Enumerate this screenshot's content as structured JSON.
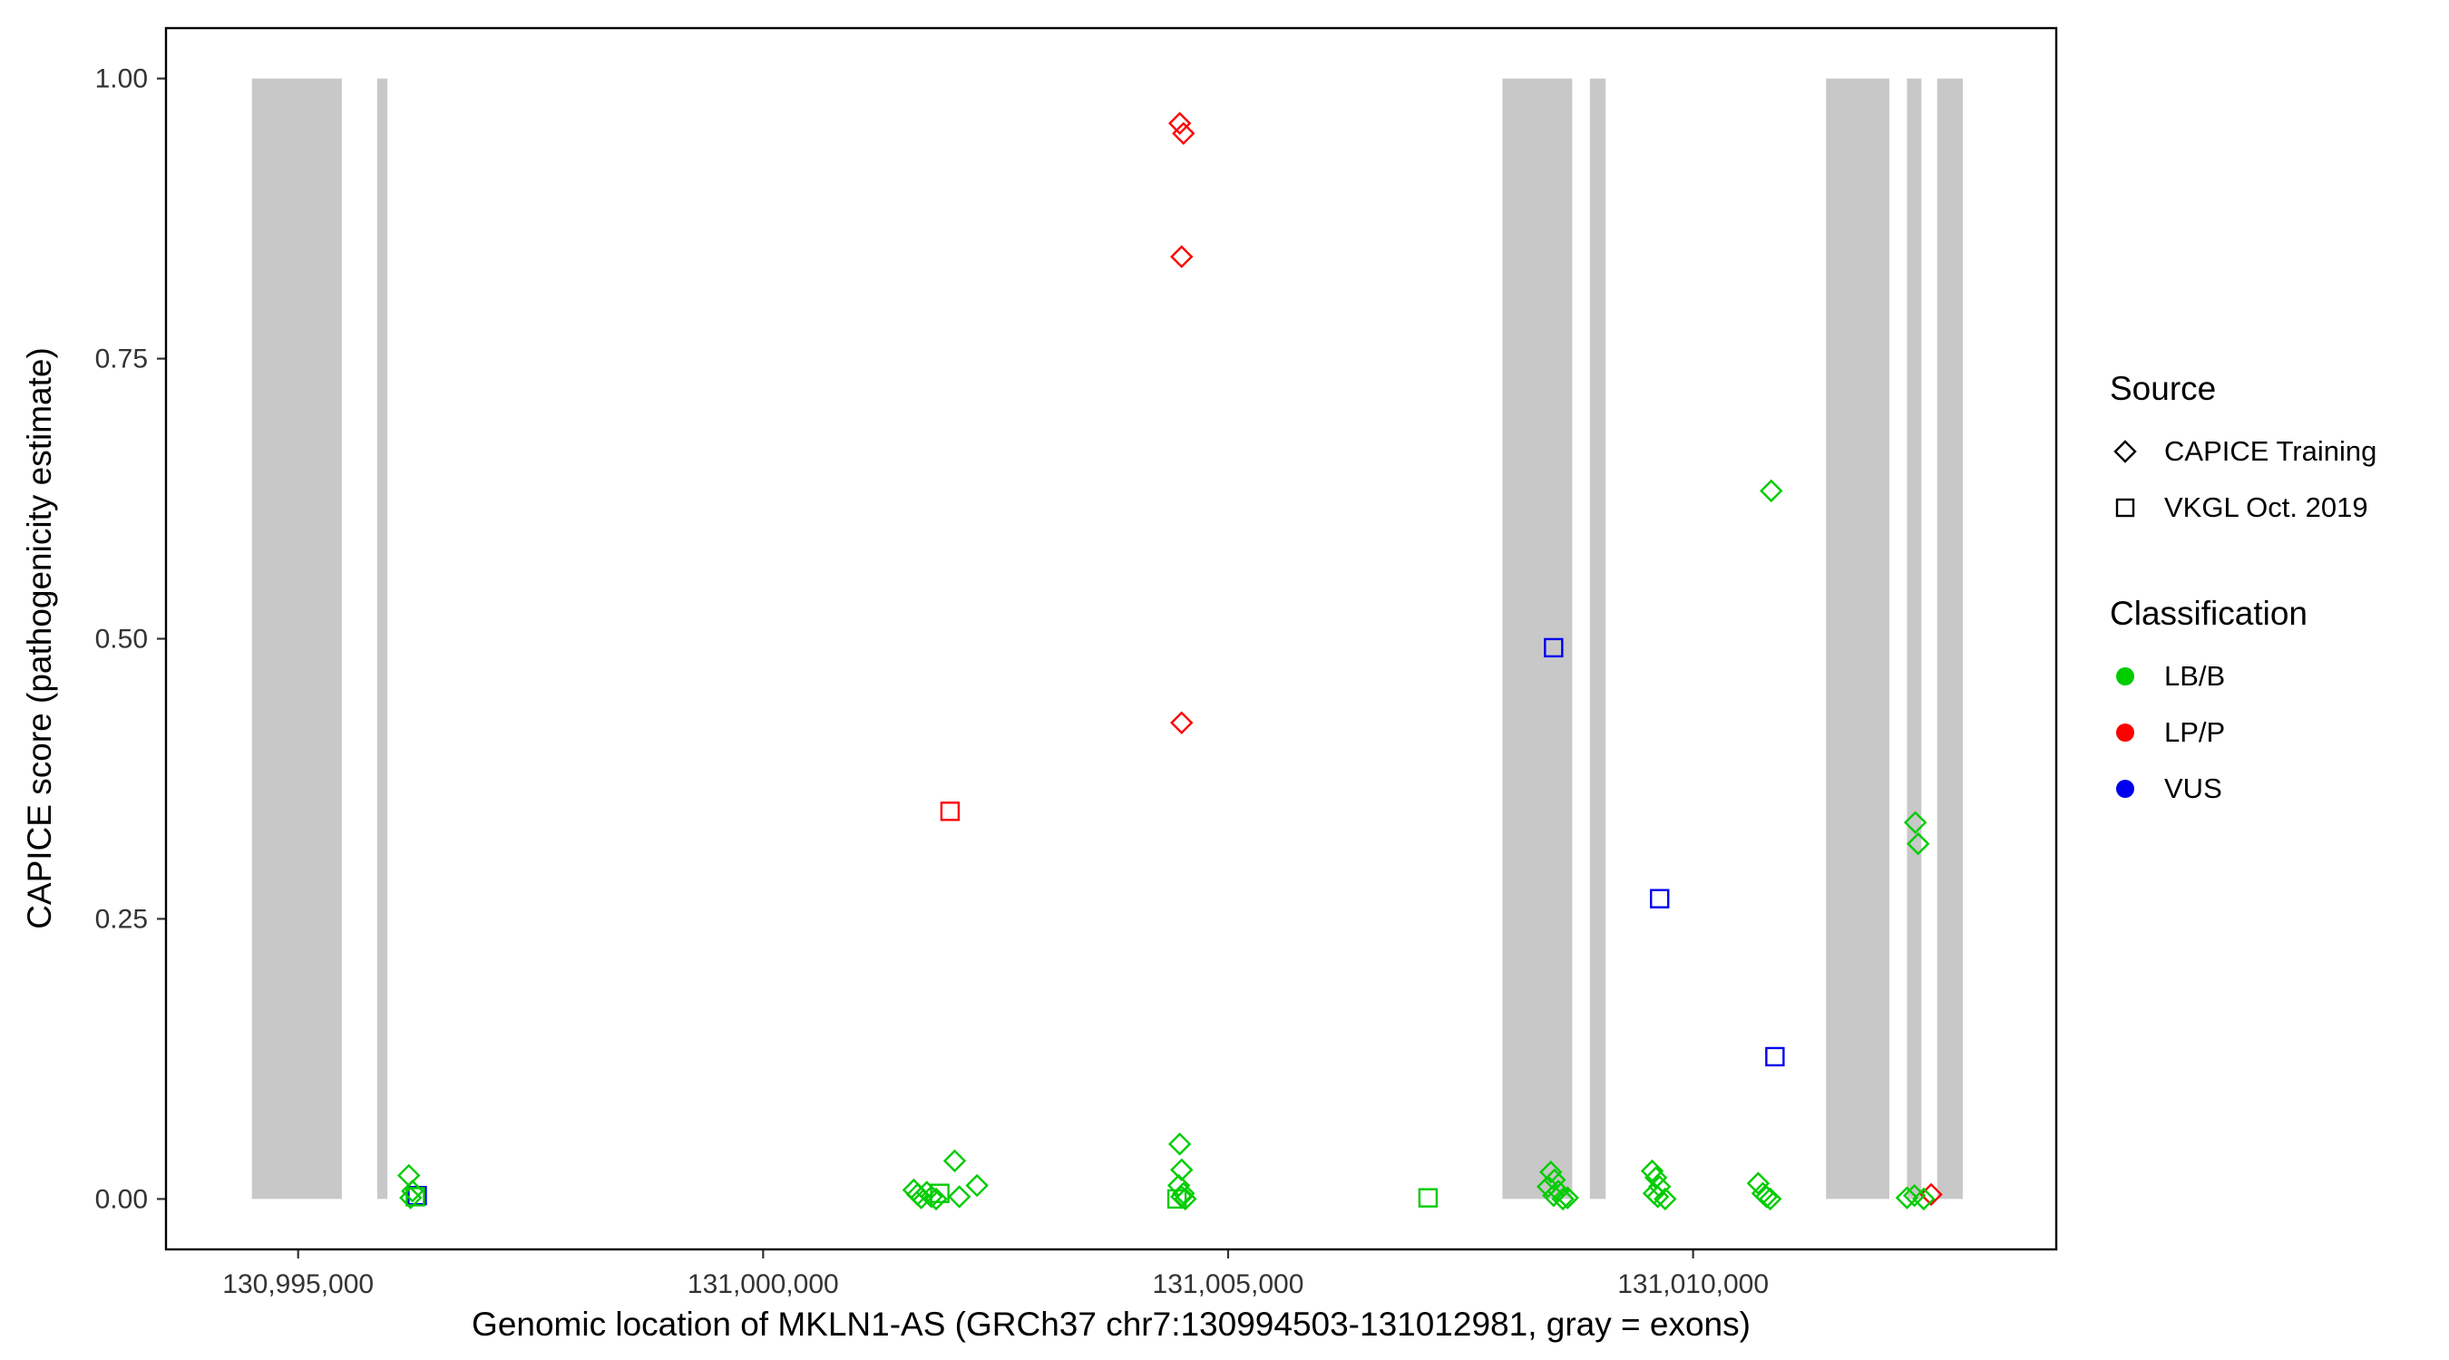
{
  "chart_data": {
    "type": "scatter",
    "title": "",
    "xlabel": "Genomic location of MKLN1-AS (GRCh37 chr7:130994503-131012981, gray = exons)",
    "ylabel": "CAPICE score (pathogenicity estimate)",
    "xlim": [
      130993579,
      131013905
    ],
    "ylim": [
      -0.045,
      1.045
    ],
    "grid": "off",
    "legend_position": "right",
    "x_ticks": {
      "values": [
        130995000,
        131000000,
        131005000,
        131010000
      ],
      "labels": [
        "130,995,000",
        "131,000,000",
        "131,005,000",
        "131,010,000"
      ]
    },
    "y_ticks": {
      "values": [
        0,
        0.25,
        0.5,
        0.75,
        1
      ],
      "labels": [
        "0.00",
        "0.25",
        "0.50",
        "0.75",
        "1.00"
      ]
    },
    "exon_color": "#C8C8C8",
    "exons": [
      [
        130994503,
        130995470
      ],
      [
        130995850,
        130995960
      ],
      [
        131007950,
        131008700
      ],
      [
        131008890,
        131009060
      ],
      [
        131011430,
        131012110
      ],
      [
        131012300,
        131012455
      ],
      [
        131012625,
        131012900
      ]
    ],
    "classification_colors": {
      "LB/B": "#00CC00",
      "LP/P": "#FF0000",
      "VUS": "#0000EE"
    },
    "source_shapes": {
      "CAPICE Training": "diamond",
      "VKGL Oct. 2019": "square"
    },
    "points": [
      {
        "x": 131004480,
        "y": 0.96,
        "classification": "LP/P",
        "source": "CAPICE Training"
      },
      {
        "x": 131004520,
        "y": 0.951,
        "classification": "LP/P",
        "source": "CAPICE Training"
      },
      {
        "x": 131004500,
        "y": 0.841,
        "classification": "LP/P",
        "source": "CAPICE Training"
      },
      {
        "x": 131004500,
        "y": 0.425,
        "classification": "LP/P",
        "source": "CAPICE Training"
      },
      {
        "x": 131012560,
        "y": 0.004,
        "classification": "LP/P",
        "source": "CAPICE Training"
      },
      {
        "x": 131002010,
        "y": 0.346,
        "classification": "LP/P",
        "source": "VKGL Oct. 2019"
      },
      {
        "x": 131008500,
        "y": 0.492,
        "classification": "VUS",
        "source": "VKGL Oct. 2019"
      },
      {
        "x": 131009640,
        "y": 0.268,
        "classification": "VUS",
        "source": "VKGL Oct. 2019"
      },
      {
        "x": 131010880,
        "y": 0.127,
        "classification": "VUS",
        "source": "VKGL Oct. 2019"
      },
      {
        "x": 130996280,
        "y": 0.003,
        "classification": "VUS",
        "source": "VKGL Oct. 2019"
      },
      {
        "x": 131010840,
        "y": 0.632,
        "classification": "LB/B",
        "source": "CAPICE Training"
      },
      {
        "x": 131012390,
        "y": 0.336,
        "classification": "LB/B",
        "source": "CAPICE Training"
      },
      {
        "x": 131012420,
        "y": 0.317,
        "classification": "LB/B",
        "source": "CAPICE Training"
      },
      {
        "x": 130996190,
        "y": 0.021,
        "classification": "LB/B",
        "source": "CAPICE Training"
      },
      {
        "x": 130996230,
        "y": 0.007,
        "classification": "LB/B",
        "source": "CAPICE Training"
      },
      {
        "x": 130996210,
        "y": 0.001,
        "classification": "LB/B",
        "source": "CAPICE Training"
      },
      {
        "x": 131001620,
        "y": 0.008,
        "classification": "LB/B",
        "source": "CAPICE Training"
      },
      {
        "x": 131001660,
        "y": 0.004,
        "classification": "LB/B",
        "source": "CAPICE Training"
      },
      {
        "x": 131001700,
        "y": 0.001,
        "classification": "LB/B",
        "source": "CAPICE Training"
      },
      {
        "x": 131001760,
        "y": 0.006,
        "classification": "LB/B",
        "source": "CAPICE Training"
      },
      {
        "x": 131001810,
        "y": 0.002,
        "classification": "LB/B",
        "source": "CAPICE Training"
      },
      {
        "x": 131001860,
        "y": 0.0,
        "classification": "LB/B",
        "source": "CAPICE Training"
      },
      {
        "x": 131002060,
        "y": 0.034,
        "classification": "LB/B",
        "source": "CAPICE Training"
      },
      {
        "x": 131002110,
        "y": 0.002,
        "classification": "LB/B",
        "source": "CAPICE Training"
      },
      {
        "x": 131002300,
        "y": 0.012,
        "classification": "LB/B",
        "source": "CAPICE Training"
      },
      {
        "x": 131004480,
        "y": 0.049,
        "classification": "LB/B",
        "source": "CAPICE Training"
      },
      {
        "x": 131004500,
        "y": 0.026,
        "classification": "LB/B",
        "source": "CAPICE Training"
      },
      {
        "x": 131004470,
        "y": 0.012,
        "classification": "LB/B",
        "source": "CAPICE Training"
      },
      {
        "x": 131004520,
        "y": 0.005,
        "classification": "LB/B",
        "source": "CAPICE Training"
      },
      {
        "x": 131004500,
        "y": 0.002,
        "classification": "LB/B",
        "source": "CAPICE Training"
      },
      {
        "x": 131004540,
        "y": 0.0,
        "classification": "LB/B",
        "source": "CAPICE Training"
      },
      {
        "x": 131008470,
        "y": 0.024,
        "classification": "LB/B",
        "source": "CAPICE Training"
      },
      {
        "x": 131008510,
        "y": 0.017,
        "classification": "LB/B",
        "source": "CAPICE Training"
      },
      {
        "x": 131008440,
        "y": 0.011,
        "classification": "LB/B",
        "source": "CAPICE Training"
      },
      {
        "x": 131008550,
        "y": 0.007,
        "classification": "LB/B",
        "source": "CAPICE Training"
      },
      {
        "x": 131008500,
        "y": 0.003,
        "classification": "LB/B",
        "source": "CAPICE Training"
      },
      {
        "x": 131008600,
        "y": 0.0,
        "classification": "LB/B",
        "source": "CAPICE Training"
      },
      {
        "x": 131008650,
        "y": 0.001,
        "classification": "LB/B",
        "source": "CAPICE Training"
      },
      {
        "x": 131009560,
        "y": 0.025,
        "classification": "LB/B",
        "source": "CAPICE Training"
      },
      {
        "x": 131009600,
        "y": 0.019,
        "classification": "LB/B",
        "source": "CAPICE Training"
      },
      {
        "x": 131009640,
        "y": 0.011,
        "classification": "LB/B",
        "source": "CAPICE Training"
      },
      {
        "x": 131009580,
        "y": 0.005,
        "classification": "LB/B",
        "source": "CAPICE Training"
      },
      {
        "x": 131009620,
        "y": 0.002,
        "classification": "LB/B",
        "source": "CAPICE Training"
      },
      {
        "x": 131009700,
        "y": 0.0,
        "classification": "LB/B",
        "source": "CAPICE Training"
      },
      {
        "x": 131010700,
        "y": 0.014,
        "classification": "LB/B",
        "source": "CAPICE Training"
      },
      {
        "x": 131010750,
        "y": 0.005,
        "classification": "LB/B",
        "source": "CAPICE Training"
      },
      {
        "x": 131010790,
        "y": 0.002,
        "classification": "LB/B",
        "source": "CAPICE Training"
      },
      {
        "x": 131010830,
        "y": 0.0,
        "classification": "LB/B",
        "source": "CAPICE Training"
      },
      {
        "x": 131012300,
        "y": 0.001,
        "classification": "LB/B",
        "source": "CAPICE Training"
      },
      {
        "x": 131012380,
        "y": 0.003,
        "classification": "LB/B",
        "source": "CAPICE Training"
      },
      {
        "x": 131012480,
        "y": 0.0,
        "classification": "LB/B",
        "source": "CAPICE Training"
      },
      {
        "x": 130996260,
        "y": 0.002,
        "classification": "LB/B",
        "source": "VKGL Oct. 2019"
      },
      {
        "x": 131001900,
        "y": 0.005,
        "classification": "LB/B",
        "source": "VKGL Oct. 2019"
      },
      {
        "x": 131004450,
        "y": 0.0,
        "classification": "LB/B",
        "source": "VKGL Oct. 2019"
      },
      {
        "x": 131007150,
        "y": 0.001,
        "classification": "LB/B",
        "source": "VKGL Oct. 2019"
      }
    ],
    "legend": {
      "source": {
        "title": "Source",
        "items": [
          {
            "label": "CAPICE Training",
            "shape": "diamond"
          },
          {
            "label": "VKGL Oct. 2019",
            "shape": "square"
          }
        ]
      },
      "classification": {
        "title": "Classification",
        "items": [
          {
            "label": "LB/B",
            "color": "#00CC00"
          },
          {
            "label": "LP/P",
            "color": "#FF0000"
          },
          {
            "label": "VUS",
            "color": "#0000EE"
          }
        ]
      }
    }
  }
}
